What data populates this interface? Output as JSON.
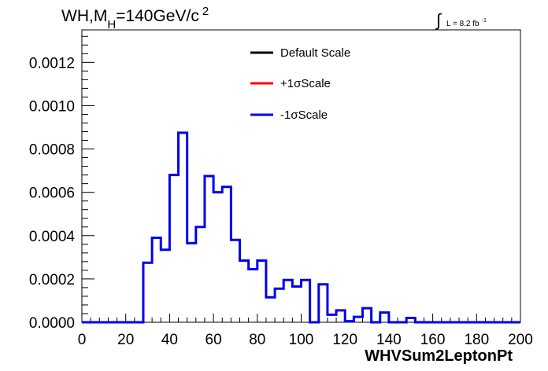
{
  "chart_data": {
    "type": "step-histogram",
    "title_main": "WH,M",
    "title_sub": "H",
    "title_value": "=140GeV/c",
    "title_sup": "2",
    "lumi_symbol": "∫",
    "lumi_text": "L = 8.2 fb",
    "lumi_sup": "-1",
    "xlabel": "WHVSum2LeptonPt",
    "xlim": [
      0,
      200
    ],
    "ylim": [
      0,
      0.00135
    ],
    "x_ticks": [
      0,
      20,
      40,
      60,
      80,
      100,
      120,
      140,
      160,
      180,
      200
    ],
    "x_tick_labels": [
      "0",
      "20",
      "40",
      "60",
      "80",
      "100",
      "120",
      "140",
      "160",
      "180",
      "200"
    ],
    "y_ticks": [
      0,
      0.0002,
      0.0004,
      0.0006,
      0.0008,
      0.001,
      0.0012
    ],
    "y_tick_labels": [
      "0.0000",
      "0.0002",
      "0.0004",
      "0.0006",
      "0.0008",
      "0.0010",
      "0.0012"
    ],
    "bin_width": 4,
    "bin_edges_start": 0,
    "series": [
      {
        "name": "-1σScale",
        "color": "#0000ee",
        "values": [
          0,
          0,
          0,
          0,
          0,
          0,
          0,
          0.000275,
          0.00039,
          0.000335,
          0.00068,
          0.000875,
          0.000365,
          0.00044,
          0.000675,
          0.0006,
          0.000625,
          0.00038,
          0.000285,
          0.000245,
          0.000285,
          0.000115,
          0.000155,
          0.000195,
          0.000165,
          0.000195,
          0,
          0.000175,
          3.5e-05,
          5.5e-05,
          5e-06,
          2.5e-05,
          6.5e-05,
          0,
          4.5e-05,
          0,
          0,
          2e-05,
          0,
          0,
          0,
          0,
          0,
          0,
          0,
          0,
          0,
          0,
          0,
          0
        ]
      }
    ],
    "legend": [
      {
        "label": "Default Scale",
        "color": "#000000"
      },
      {
        "label": "+1σScale",
        "color": "#ff0000"
      },
      {
        "label": "-1σScale",
        "color": "#0000ee"
      }
    ],
    "legend_position": "top-center"
  }
}
